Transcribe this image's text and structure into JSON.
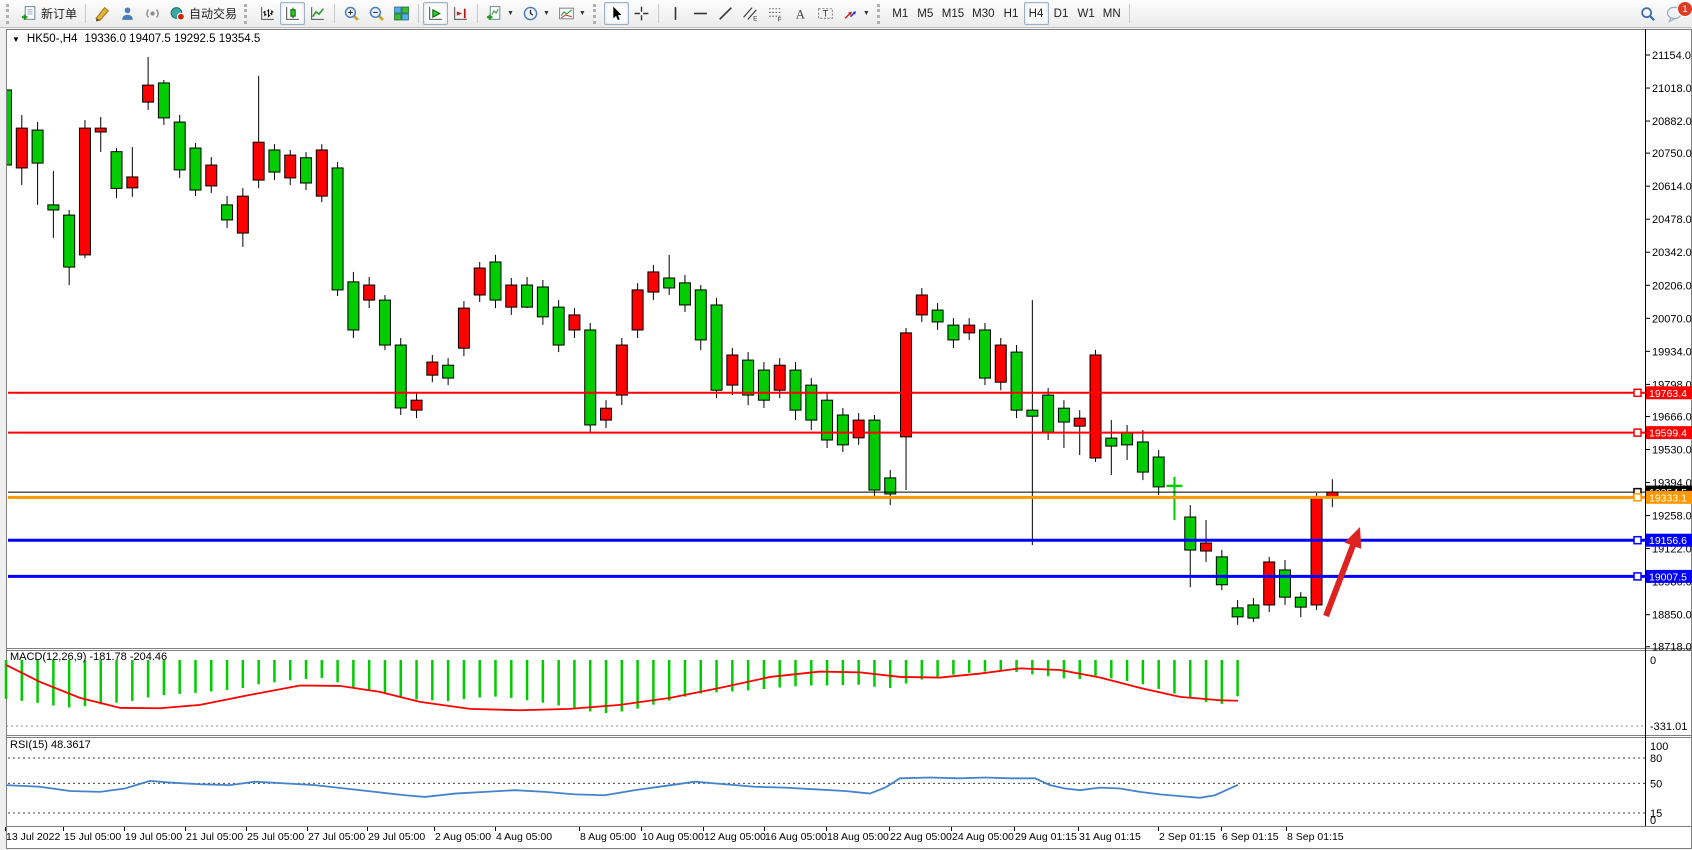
{
  "toolbar": {
    "new_order_label": "新订单",
    "autotrade_label": "自动交易",
    "timeframes": [
      "M1",
      "M5",
      "M15",
      "M30",
      "H1",
      "H4",
      "D1",
      "W1",
      "MN"
    ],
    "active_timeframe": "H4",
    "notification_count": "1",
    "icon_buttons": [
      "new-order",
      "metaeditor",
      "community",
      "signals",
      "autotrade",
      "bar-chart",
      "candlestick-chart",
      "line-chart",
      "zoom-in",
      "zoom-out",
      "tile-windows",
      "auto-scroll",
      "chart-shift",
      "indicators",
      "periods",
      "templates",
      "cursor",
      "crosshair",
      "vertical-line",
      "horizontal-line",
      "trendline",
      "equidistant-channel",
      "fibonacci",
      "text",
      "text-label",
      "arrows",
      "search",
      "notifications"
    ]
  },
  "chart": {
    "collapse_marker": "▼",
    "symbol_period": "HK50-,H4",
    "ohlc_summary": "19336.0 19407.5 19292.5 19354.5"
  },
  "chart_data": {
    "type": "candlestick",
    "symbol": "HK50-",
    "timeframe": "H4",
    "current": {
      "open": 19336.0,
      "high": 19407.5,
      "low": 19292.5,
      "close": 19354.5
    },
    "up_color": "#ff0000",
    "down_color": "#00cc00",
    "wick_color": "#000000",
    "y_axis": {
      "min": 18718.0,
      "max": 21154.0,
      "ticks": [
        21154.0,
        21018.0,
        20882.0,
        20750.0,
        20614.0,
        20478.0,
        20342.0,
        20206.0,
        20070.0,
        19934.0,
        19798.0,
        19666.0,
        19530.0,
        19394.0,
        19258.0,
        19122.0,
        18986.0,
        18850.0,
        18718.0
      ]
    },
    "x_axis": {
      "labels": [
        "13 Jul 2022",
        "15 Jul 05:00",
        "19 Jul 05:00",
        "21 Jul 05:00",
        "25 Jul 05:00",
        "27 Jul 05:00",
        "29 Jul 05:00",
        "2 Aug 05:00",
        "4 Aug 05:00",
        "8 Aug 05:00",
        "10 Aug 05:00",
        "12 Aug 05:00",
        "16 Aug 05:00",
        "18 Aug 05:00",
        "22 Aug 05:00",
        "24 Aug 05:00",
        "29 Aug 01:15",
        "31 Aug 01:15",
        "2 Sep 01:15",
        "6 Sep 01:15",
        "8 Sep 01:15"
      ],
      "positions": [
        4,
        62,
        123,
        184,
        245,
        306,
        366,
        433,
        494,
        578,
        640,
        702,
        763,
        825,
        888,
        950,
        1013,
        1077,
        1157,
        1220,
        1285
      ]
    },
    "candles": [
      [
        21010,
        21043,
        20434,
        20701
      ],
      [
        20689,
        20907,
        20619,
        20853
      ],
      [
        20845,
        20878,
        20537,
        20709
      ],
      [
        20537,
        20677,
        20401,
        20516
      ],
      [
        20495,
        20516,
        20207,
        20281
      ],
      [
        20331,
        20886,
        20318,
        20853
      ],
      [
        20837,
        20899,
        20755,
        20853
      ],
      [
        20756,
        20771,
        20565,
        20605
      ],
      [
        20607,
        20775,
        20570,
        20652
      ],
      [
        20960,
        21146,
        20928,
        21030
      ],
      [
        21039,
        21051,
        20866,
        20895
      ],
      [
        20878,
        20907,
        20648,
        20681
      ],
      [
        20771,
        20792,
        20573,
        20598
      ],
      [
        20615,
        20734,
        20586,
        20701
      ],
      [
        20537,
        20574,
        20442,
        20475
      ],
      [
        20421,
        20606,
        20364,
        20573
      ],
      [
        20639,
        21068,
        20606,
        20795
      ],
      [
        20763,
        20787,
        20639,
        20672
      ],
      [
        20648,
        20763,
        20619,
        20742
      ],
      [
        20731,
        20754,
        20598,
        20627
      ],
      [
        20573,
        20787,
        20548,
        20763
      ],
      [
        20689,
        20714,
        20162,
        20187
      ],
      [
        20220,
        20261,
        19989,
        20022
      ],
      [
        20145,
        20240,
        20112,
        20207
      ],
      [
        20145,
        20166,
        19939,
        19960
      ],
      [
        19960,
        19989,
        19672,
        19701
      ],
      [
        19692,
        19762,
        19659,
        19733
      ],
      [
        19836,
        19919,
        19807,
        19890
      ],
      [
        19877,
        19906,
        19795,
        19824
      ],
      [
        19947,
        20141,
        19914,
        20112
      ],
      [
        20166,
        20302,
        20137,
        20277
      ],
      [
        20302,
        20331,
        20112,
        20145
      ],
      [
        20116,
        20236,
        20084,
        20207
      ],
      [
        20207,
        20240,
        20112,
        20116
      ],
      [
        20199,
        20228,
        20043,
        20076
      ],
      [
        20116,
        20145,
        19931,
        19960
      ],
      [
        20022,
        20112,
        19989,
        20084
      ],
      [
        20022,
        20051,
        19602,
        19631
      ],
      [
        19651,
        19733,
        19618,
        19700
      ],
      [
        19754,
        19989,
        19713,
        19960
      ],
      [
        20022,
        20215,
        19989,
        20187
      ],
      [
        20178,
        20290,
        20145,
        20261
      ],
      [
        20236,
        20331,
        20166,
        20195
      ],
      [
        20216,
        20249,
        20096,
        20125
      ],
      [
        20187,
        20207,
        19939,
        19981
      ],
      [
        20125,
        20154,
        19741,
        19774
      ],
      [
        19795,
        19948,
        19754,
        19919
      ],
      [
        19898,
        19931,
        19713,
        19754
      ],
      [
        19857,
        19890,
        19701,
        19733
      ],
      [
        19774,
        19906,
        19741,
        19877
      ],
      [
        19857,
        19890,
        19651,
        19692
      ],
      [
        19795,
        19824,
        19610,
        19651
      ],
      [
        19733,
        19762,
        19536,
        19569
      ],
      [
        19672,
        19701,
        19520,
        19549
      ],
      [
        19578,
        19680,
        19549,
        19651
      ],
      [
        19651,
        19672,
        19330,
        19363
      ],
      [
        19413,
        19446,
        19301,
        19347
      ],
      [
        19582,
        20030,
        19363,
        20010
      ],
      [
        20084,
        20195,
        20055,
        20166
      ],
      [
        20104,
        20133,
        20022,
        20055
      ],
      [
        20042,
        20071,
        19948,
        19981
      ],
      [
        20010,
        20071,
        19981,
        20042
      ],
      [
        20022,
        20051,
        19795,
        19824
      ],
      [
        19807,
        19989,
        19774,
        19960
      ],
      [
        19931,
        19960,
        19659,
        19692
      ],
      [
        19692,
        20145,
        19137,
        19667
      ],
      [
        19754,
        19783,
        19569,
        19602
      ],
      [
        19700,
        19733,
        19536,
        19643
      ],
      [
        19626,
        19692,
        19507,
        19659
      ],
      [
        19495,
        19940,
        19479,
        19919
      ],
      [
        19577,
        19651,
        19425,
        19544
      ],
      [
        19598,
        19631,
        19487,
        19549
      ],
      [
        19561,
        19610,
        19404,
        19437
      ],
      [
        19499,
        19528,
        19343,
        19376
      ],
      [
        19380,
        19417,
        19240,
        19380
      ],
      [
        19252,
        19301,
        18963,
        19116
      ],
      [
        19112,
        19240,
        19067,
        19145
      ],
      [
        19088,
        19116,
        18951,
        18973
      ],
      [
        18878,
        18910,
        18808,
        18841
      ],
      [
        18890,
        18918,
        18820,
        18836
      ],
      [
        18890,
        19088,
        18861,
        19067
      ],
      [
        19034,
        19075,
        18890,
        18922
      ],
      [
        18922,
        18943,
        18840,
        18881
      ],
      [
        18890,
        19351,
        18869,
        19335
      ],
      [
        19336,
        19407.5,
        19292.5,
        19354.5
      ]
    ],
    "hlines": [
      {
        "price": 19763.4,
        "color": "#ff0000",
        "width": 2
      },
      {
        "price": 19599.4,
        "color": "#ff0000",
        "width": 2
      },
      {
        "price": 19354.5,
        "color": "#000000",
        "width": 1,
        "is_price_line": true
      },
      {
        "price": 19333.1,
        "color": "#ff9800",
        "width": 3
      },
      {
        "price": 19156.6,
        "color": "#0000ff",
        "width": 3
      },
      {
        "price": 19007.5,
        "color": "#0000ff",
        "width": 3
      }
    ],
    "annotation_arrow": {
      "from": [
        1326,
        616
      ],
      "to": [
        1360,
        527
      ],
      "color": "#dd2222"
    },
    "indicators": [
      {
        "name": "MACD",
        "params": "(12,26,9)",
        "label": "MACD(12,26,9) -181.78 -204.46",
        "values": {
          "macd": -181.78,
          "signal": -204.46
        },
        "axis_labels": [
          {
            "text": "0",
            "value": 0
          },
          {
            "text": "-331.01",
            "value": -331.01
          }
        ],
        "histogram_color": "#00cc00",
        "signal_color": "#ff0000",
        "histogram": [
          -195,
          -205,
          -215,
          -228,
          -238,
          -232,
          -222,
          -214,
          -205,
          -188,
          -176,
          -170,
          -165,
          -158,
          -150,
          -140,
          -122,
          -112,
          -102,
          -95,
          -90,
          -112,
          -138,
          -152,
          -168,
          -188,
          -198,
          -202,
          -206,
          -196,
          -188,
          -184,
          -190,
          -202,
          -214,
          -228,
          -240,
          -258,
          -266,
          -258,
          -244,
          -224,
          -204,
          -184,
          -168,
          -162,
          -158,
          -152,
          -146,
          -138,
          -132,
          -128,
          -128,
          -126,
          -124,
          -134,
          -140,
          -118,
          -98,
          -84,
          -74,
          -64,
          -58,
          -56,
          -60,
          -72,
          -82,
          -92,
          -96,
          -86,
          -92,
          -105,
          -122,
          -145,
          -168,
          -192,
          -210,
          -220,
          -181.78
        ],
        "signal_line": [
          [
            6,
            -25
          ],
          [
            40,
            -110
          ],
          [
            80,
            -190
          ],
          [
            120,
            -240
          ],
          [
            160,
            -242
          ],
          [
            200,
            -225
          ],
          [
            250,
            -175
          ],
          [
            300,
            -128
          ],
          [
            340,
            -130
          ],
          [
            380,
            -160
          ],
          [
            420,
            -210
          ],
          [
            470,
            -245
          ],
          [
            520,
            -252
          ],
          [
            570,
            -245
          ],
          [
            620,
            -225
          ],
          [
            670,
            -190
          ],
          [
            720,
            -140
          ],
          [
            770,
            -85
          ],
          [
            820,
            -58
          ],
          [
            860,
            -62
          ],
          [
            900,
            -85
          ],
          [
            940,
            -88
          ],
          [
            980,
            -68
          ],
          [
            1020,
            -42
          ],
          [
            1060,
            -50
          ],
          [
            1100,
            -88
          ],
          [
            1140,
            -140
          ],
          [
            1180,
            -185
          ],
          [
            1220,
            -202
          ],
          [
            1238,
            -204.46
          ]
        ]
      },
      {
        "name": "RSI",
        "params": "(15)",
        "label": "RSI(15) 48.3617",
        "value": 48.3617,
        "levels": [
          80,
          50,
          15
        ],
        "axis_labels": [
          "100",
          "80",
          "50",
          "15",
          "0"
        ],
        "line_color": "#4583cb",
        "line": [
          [
            6,
            48
          ],
          [
            40,
            46
          ],
          [
            70,
            41
          ],
          [
            100,
            40
          ],
          [
            125,
            44
          ],
          [
            150,
            53
          ],
          [
            170,
            51
          ],
          [
            200,
            49
          ],
          [
            230,
            48
          ],
          [
            255,
            52
          ],
          [
            285,
            50
          ],
          [
            315,
            48
          ],
          [
            345,
            44
          ],
          [
            375,
            40
          ],
          [
            405,
            36
          ],
          [
            425,
            34
          ],
          [
            455,
            38
          ],
          [
            485,
            40
          ],
          [
            515,
            42
          ],
          [
            545,
            40
          ],
          [
            575,
            37
          ],
          [
            605,
            36
          ],
          [
            635,
            42
          ],
          [
            665,
            47
          ],
          [
            695,
            52
          ],
          [
            725,
            49
          ],
          [
            755,
            46
          ],
          [
            785,
            45
          ],
          [
            815,
            43
          ],
          [
            845,
            41
          ],
          [
            870,
            38
          ],
          [
            885,
            45
          ],
          [
            900,
            56
          ],
          [
            930,
            57
          ],
          [
            960,
            56
          ],
          [
            985,
            57
          ],
          [
            1010,
            56
          ],
          [
            1035,
            56
          ],
          [
            1050,
            48
          ],
          [
            1065,
            44
          ],
          [
            1080,
            42
          ],
          [
            1100,
            45
          ],
          [
            1120,
            44
          ],
          [
            1140,
            40
          ],
          [
            1160,
            37
          ],
          [
            1180,
            35
          ],
          [
            1200,
            33
          ],
          [
            1215,
            36
          ],
          [
            1228,
            43
          ],
          [
            1238,
            48.36
          ]
        ]
      }
    ]
  }
}
